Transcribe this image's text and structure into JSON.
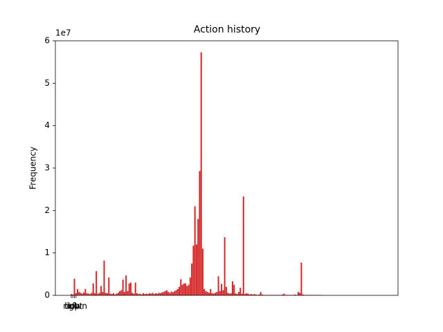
{
  "chart_data": {
    "type": "bar",
    "title": "Action history",
    "ylabel": "Frequency",
    "y_offset_label": "1e7",
    "categories": [
      "left",
      "right",
      "up",
      "down",
      null,
      null,
      null,
      null,
      null,
      null,
      null,
      null,
      null,
      null,
      null,
      null,
      null,
      null,
      null,
      null,
      null,
      null,
      null,
      null,
      null,
      null,
      null,
      null,
      null,
      null,
      null,
      null,
      null,
      null,
      null,
      null,
      null,
      null,
      null,
      null,
      null,
      null,
      null,
      null,
      null,
      null,
      null,
      null,
      null,
      null,
      null,
      null,
      null,
      null,
      null,
      null,
      null,
      null,
      null,
      null,
      null,
      null,
      null,
      null,
      null,
      null,
      null,
      null,
      null,
      null,
      null,
      null,
      null,
      null,
      null,
      null,
      null,
      null,
      null,
      null,
      null,
      null,
      null,
      null,
      null,
      null,
      null,
      null,
      null,
      null,
      null,
      null,
      null,
      null,
      null,
      null,
      null,
      null,
      null,
      null,
      null,
      null,
      null,
      null,
      null,
      null,
      null,
      null,
      null,
      null,
      null,
      null,
      null,
      null,
      null,
      null,
      null,
      null,
      null,
      null,
      null,
      null,
      null,
      null,
      null,
      null,
      null,
      null,
      null,
      null,
      null,
      null,
      null,
      null,
      null,
      null,
      null,
      null,
      null,
      null,
      null,
      null,
      null,
      null,
      null,
      null,
      null,
      null,
      null,
      null,
      null,
      null,
      null,
      null,
      null,
      null,
      null,
      null,
      null,
      null,
      null,
      null,
      null,
      null,
      null,
      null,
      null,
      null,
      null,
      null,
      null,
      null,
      null,
      null,
      null,
      null,
      null,
      null,
      null,
      null,
      null,
      null,
      null,
      null,
      null,
      null,
      null,
      null,
      null,
      null,
      null,
      null,
      null,
      null,
      null,
      null,
      null,
      null,
      null,
      null
    ],
    "values": [
      0.03,
      0.02,
      0.39,
      0.05,
      0.15,
      0.08,
      0.06,
      0.04,
      0.07,
      0.15,
      0.05,
      0.04,
      0.03,
      0.06,
      0.28,
      0.05,
      0.57,
      0.04,
      0.06,
      0.22,
      0.08,
      0.82,
      0.06,
      0.05,
      0.42,
      0.04,
      0.03,
      0.05,
      0.02,
      0.04,
      0.06,
      0.1,
      0.12,
      0.37,
      0.08,
      0.47,
      0.1,
      0.28,
      0.3,
      0.06,
      0.04,
      0.3,
      0.05,
      0.03,
      0.04,
      0.02,
      0.05,
      0.03,
      0.04,
      0.03,
      0.05,
      0.04,
      0.06,
      0.03,
      0.05,
      0.04,
      0.06,
      0.05,
      0.07,
      0.08,
      0.1,
      0.12,
      0.08,
      0.06,
      0.09,
      0.07,
      0.1,
      0.12,
      0.15,
      0.2,
      0.38,
      0.25,
      0.28,
      0.28,
      0.22,
      0.25,
      0.42,
      0.75,
      1.17,
      2.1,
      1.2,
      1.8,
      2.93,
      5.73,
      1.1,
      0.15,
      0.1,
      0.08,
      0.06,
      0.15,
      0.05,
      0.04,
      0.06,
      0.08,
      0.45,
      0.1,
      0.27,
      0.12,
      1.37,
      0.2,
      0.06,
      0.04,
      0.05,
      0.33,
      0.25,
      0.05,
      0.03,
      0.08,
      0.18,
      0.04,
      2.33,
      0.03,
      0.05,
      0.04,
      0.02,
      0.03,
      0.02,
      0.03,
      0.02,
      0.01,
      0.02,
      0.08,
      0.02,
      0.01,
      0.01,
      0.01,
      0.01,
      0.01,
      0.01,
      0.01,
      0.01,
      0.01,
      0.01,
      0.01,
      0.01,
      0.02,
      0.04,
      0.01,
      0.01,
      0.01,
      0.01,
      0.01,
      0.01,
      0.02,
      0.01,
      0.08,
      0.06,
      0.77,
      0.02,
      0.01,
      0.01,
      0.01,
      0.01,
      0.01,
      0.01,
      0.01,
      0.01,
      0.01,
      0.01,
      0.01,
      0,
      0,
      0,
      0,
      0,
      0,
      0,
      0,
      0,
      0,
      0,
      0,
      0,
      0,
      0,
      0,
      0,
      0,
      0,
      0,
      0,
      0,
      0,
      0,
      0,
      0,
      0,
      0,
      0,
      0,
      0,
      0,
      0,
      0,
      0,
      0,
      0,
      0,
      0,
      0
    ],
    "color": "#d62728",
    "ylim": [
      0,
      6
    ],
    "yticks": [
      0,
      1,
      2,
      3,
      4,
      5,
      6
    ],
    "grid": false
  }
}
